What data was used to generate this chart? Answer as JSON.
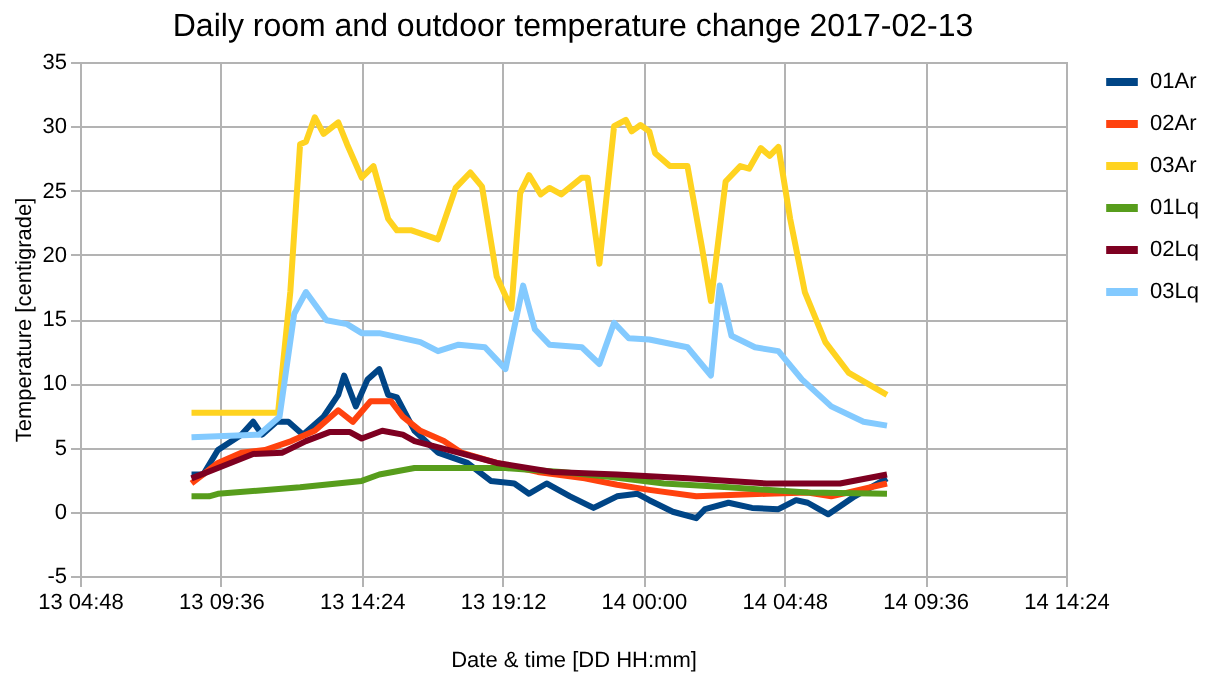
{
  "chart_data": {
    "type": "line",
    "title": "Daily room and outdoor temperature change 2017-02-13",
    "xlabel": "Date & time [DD HH:mm]",
    "ylabel": "Temperature [centigrade]",
    "xlim": [
      "2017-02-13T04:48",
      "2017-02-14T14:24"
    ],
    "xticks": [
      {
        "value": "2017-02-13T04:48",
        "label": "13 04:48"
      },
      {
        "value": "2017-02-13T09:36",
        "label": "13 09:36"
      },
      {
        "value": "2017-02-13T14:24",
        "label": "13 14:24"
      },
      {
        "value": "2017-02-13T19:12",
        "label": "13 19:12"
      },
      {
        "value": "2017-02-14T00:00",
        "label": "14 00:00"
      },
      {
        "value": "2017-02-14T04:48",
        "label": "14 04:48"
      },
      {
        "value": "2017-02-14T09:36",
        "label": "14 09:36"
      },
      {
        "value": "2017-02-14T14:24",
        "label": "14 14:24"
      }
    ],
    "ylim": [
      -5,
      35
    ],
    "yticks": [
      -5,
      0,
      5,
      10,
      15,
      20,
      25,
      30,
      35
    ],
    "grid": true,
    "legend": "right",
    "line_style": "solid",
    "marker": "none",
    "series": [
      {
        "name": "01Ar",
        "color": "#004586",
        "x": [
          "2017-02-13T08:36",
          "2017-02-13T09:00",
          "2017-02-13T09:30",
          "2017-02-13T10:18",
          "2017-02-13T10:42",
          "2017-02-13T11:00",
          "2017-02-13T11:30",
          "2017-02-13T11:54",
          "2017-02-13T12:24",
          "2017-02-13T13:06",
          "2017-02-13T13:36",
          "2017-02-13T13:48",
          "2017-02-13T14:12",
          "2017-02-13T14:36",
          "2017-02-13T15:00",
          "2017-02-13T15:18",
          "2017-02-13T15:36",
          "2017-02-13T16:12",
          "2017-02-13T17:00",
          "2017-02-13T18:00",
          "2017-02-13T18:48",
          "2017-02-13T19:36",
          "2017-02-13T20:06",
          "2017-02-13T20:42",
          "2017-02-13T21:30",
          "2017-02-13T22:18",
          "2017-02-13T23:06",
          "2017-02-13T23:48",
          "2017-02-14T00:12",
          "2017-02-14T01:00",
          "2017-02-14T01:48",
          "2017-02-14T02:06",
          "2017-02-14T02:54",
          "2017-02-14T03:42",
          "2017-02-14T04:36",
          "2017-02-14T05:12",
          "2017-02-14T05:36",
          "2017-02-14T06:18",
          "2017-02-14T07:12",
          "2017-02-14T08:18"
        ],
        "values": [
          2.9,
          2.9,
          4.8,
          6.0,
          7.0,
          6.0,
          7.0,
          7.0,
          6.0,
          7.4,
          9.1,
          10.6,
          8.2,
          10.3,
          11.1,
          9.1,
          8.9,
          6.3,
          4.6,
          3.8,
          2.4,
          2.2,
          1.4,
          2.2,
          1.2,
          0.3,
          1.2,
          1.4,
          0.9,
          0.0,
          -0.5,
          0.2,
          0.7,
          0.3,
          0.2,
          0.9,
          0.7,
          -0.2,
          1.2,
          2.6
        ]
      },
      {
        "name": "02Ar",
        "color": "#ff420e",
        "x": [
          "2017-02-13T08:36",
          "2017-02-13T09:30",
          "2017-02-13T10:18",
          "2017-02-13T11:06",
          "2017-02-13T12:00",
          "2017-02-13T12:48",
          "2017-02-13T13:36",
          "2017-02-13T14:06",
          "2017-02-13T14:42",
          "2017-02-13T15:24",
          "2017-02-13T15:48",
          "2017-02-13T16:24",
          "2017-02-13T17:12",
          "2017-02-13T17:48",
          "2017-02-13T19:00",
          "2017-02-13T20:24",
          "2017-02-13T22:00",
          "2017-02-13T23:06",
          "2017-02-14T00:12",
          "2017-02-14T01:48",
          "2017-02-14T04:12",
          "2017-02-14T05:36",
          "2017-02-14T06:24",
          "2017-02-14T08:18"
        ],
        "values": [
          2.2,
          3.8,
          4.6,
          4.8,
          5.5,
          6.3,
          7.9,
          7.0,
          8.6,
          8.6,
          7.4,
          6.3,
          5.5,
          4.6,
          3.8,
          3.1,
          2.6,
          2.1,
          1.7,
          1.2,
          1.4,
          1.5,
          1.2,
          2.2
        ]
      },
      {
        "name": "03Ar",
        "color": "#ffd320",
        "x": [
          "2017-02-13T08:36",
          "2017-02-13T11:33",
          "2017-02-13T11:58",
          "2017-02-13T12:18",
          "2017-02-13T12:30",
          "2017-02-13T12:48",
          "2017-02-13T13:06",
          "2017-02-13T13:36",
          "2017-02-13T13:54",
          "2017-02-13T14:24",
          "2017-02-13T14:48",
          "2017-02-13T15:18",
          "2017-02-13T15:36",
          "2017-02-13T16:06",
          "2017-02-13T17:00",
          "2017-02-13T17:36",
          "2017-02-13T18:06",
          "2017-02-13T18:30",
          "2017-02-13T19:00",
          "2017-02-13T19:30",
          "2017-02-13T19:48",
          "2017-02-13T20:06",
          "2017-02-13T20:30",
          "2017-02-13T20:48",
          "2017-02-13T21:12",
          "2017-02-13T21:54",
          "2017-02-13T22:06",
          "2017-02-13T22:30",
          "2017-02-13T23:00",
          "2017-02-13T23:24",
          "2017-02-13T23:36",
          "2017-02-13T23:54",
          "2017-02-14T00:12",
          "2017-02-14T00:24",
          "2017-02-14T00:54",
          "2017-02-14T01:30",
          "2017-02-14T02:00",
          "2017-02-14T02:18",
          "2017-02-14T02:48",
          "2017-02-14T03:18",
          "2017-02-14T03:36",
          "2017-02-14T04:00",
          "2017-02-14T04:18",
          "2017-02-14T04:36",
          "2017-02-14T05:00",
          "2017-02-14T05:30",
          "2017-02-14T06:12",
          "2017-02-14T07:00",
          "2017-02-14T08:18"
        ],
        "values": [
          7.7,
          7.7,
          17.1,
          28.6,
          28.8,
          30.7,
          29.4,
          30.3,
          28.6,
          26.0,
          26.9,
          22.8,
          21.9,
          21.9,
          21.2,
          25.2,
          26.4,
          25.3,
          18.3,
          15.8,
          24.8,
          26.2,
          24.7,
          25.2,
          24.7,
          26.0,
          26.0,
          19.3,
          30.0,
          30.5,
          29.6,
          30.1,
          29.6,
          27.9,
          26.9,
          26.9,
          20.5,
          16.4,
          25.7,
          26.9,
          26.7,
          28.3,
          27.7,
          28.4,
          22.8,
          17.1,
          13.2,
          10.8,
          9.1
        ]
      },
      {
        "name": "01Lq",
        "color": "#579d1c",
        "x": [
          "2017-02-13T08:36",
          "2017-02-13T09:12",
          "2017-02-13T09:30",
          "2017-02-13T12:18",
          "2017-02-13T14:24",
          "2017-02-13T15:00",
          "2017-02-13T16:12",
          "2017-02-13T17:42",
          "2017-02-13T19:18",
          "2017-02-13T21:12",
          "2017-02-13T22:54",
          "2017-02-14T00:42",
          "2017-02-14T02:54",
          "2017-02-14T05:36",
          "2017-02-14T08:18"
        ],
        "values": [
          1.2,
          1.2,
          1.4,
          1.9,
          2.4,
          2.9,
          3.4,
          3.4,
          3.4,
          3.1,
          2.7,
          2.2,
          1.9,
          1.5,
          1.4
        ]
      },
      {
        "name": "02Lq",
        "color": "#7e0021",
        "x": [
          "2017-02-13T08:36",
          "2017-02-13T09:30",
          "2017-02-13T10:42",
          "2017-02-13T11:42",
          "2017-02-13T12:30",
          "2017-02-13T13:18",
          "2017-02-13T14:00",
          "2017-02-13T14:24",
          "2017-02-13T15:06",
          "2017-02-13T15:48",
          "2017-02-13T16:12",
          "2017-02-13T17:42",
          "2017-02-13T19:00",
          "2017-02-13T20:54",
          "2017-02-13T23:06",
          "2017-02-14T01:30",
          "2017-02-14T04:12",
          "2017-02-14T06:42",
          "2017-02-14T08:18"
        ],
        "values": [
          2.6,
          3.4,
          4.5,
          4.6,
          5.5,
          6.2,
          6.2,
          5.7,
          6.3,
          6.0,
          5.5,
          4.6,
          3.8,
          3.1,
          2.9,
          2.6,
          2.2,
          2.2,
          2.9
        ]
      },
      {
        "name": "03Lq",
        "color": "#83caff",
        "x": [
          "2017-02-13T08:36",
          "2017-02-13T10:54",
          "2017-02-13T11:36",
          "2017-02-13T12:06",
          "2017-02-13T12:30",
          "2017-02-13T13:12",
          "2017-02-13T13:54",
          "2017-02-13T14:24",
          "2017-02-13T15:00",
          "2017-02-13T16:24",
          "2017-02-13T17:00",
          "2017-02-13T17:42",
          "2017-02-13T18:36",
          "2017-02-13T19:18",
          "2017-02-13T19:54",
          "2017-02-13T20:18",
          "2017-02-13T20:48",
          "2017-02-13T21:54",
          "2017-02-13T22:30",
          "2017-02-13T23:00",
          "2017-02-13T23:30",
          "2017-02-14T00:12",
          "2017-02-14T01:30",
          "2017-02-14T02:18",
          "2017-02-14T02:36",
          "2017-02-14T03:00",
          "2017-02-14T03:48",
          "2017-02-14T04:36",
          "2017-02-14T05:24",
          "2017-02-14T06:24",
          "2017-02-14T07:30",
          "2017-02-14T08:18"
        ],
        "values": [
          5.8,
          6.0,
          7.4,
          15.4,
          17.1,
          14.9,
          14.6,
          13.9,
          13.9,
          13.2,
          12.5,
          13.0,
          12.8,
          11.1,
          17.6,
          14.2,
          13.0,
          12.8,
          11.5,
          14.7,
          13.5,
          13.4,
          12.8,
          10.6,
          17.6,
          13.7,
          12.8,
          12.5,
          10.3,
          8.2,
          7.0,
          6.7
        ]
      }
    ]
  }
}
